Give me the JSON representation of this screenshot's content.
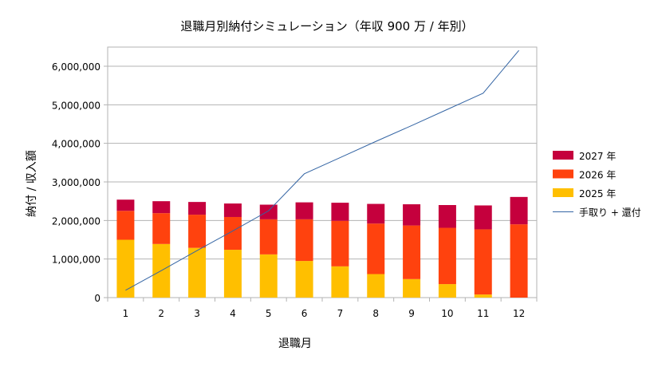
{
  "chart_data": {
    "type": "bar",
    "stacked": true,
    "title": "退職月別納付シミュレーション（年収 900 万 / 年別）",
    "xlabel": "退職月",
    "ylabel": "納付 / 収入額",
    "categories": [
      "1",
      "2",
      "3",
      "4",
      "5",
      "6",
      "7",
      "8",
      "9",
      "10",
      "11",
      "12"
    ],
    "ylim": [
      0,
      6500000
    ],
    "yticks": [
      0,
      1000000,
      2000000,
      3000000,
      4000000,
      5000000,
      6000000
    ],
    "ytick_labels": [
      "0",
      "1,000,000",
      "2,000,000",
      "3,000,000",
      "4,000,000",
      "5,000,000",
      "6,000,000"
    ],
    "grid": true,
    "legend_position": "right",
    "series": [
      {
        "name": "2025 年",
        "kind": "bar",
        "color": "#FFBF00",
        "values": [
          1500000,
          1390000,
          1290000,
          1240000,
          1120000,
          950000,
          810000,
          610000,
          480000,
          350000,
          80000,
          0
        ]
      },
      {
        "name": "2026 年",
        "kind": "bar",
        "color": "#FF420E",
        "values": [
          750000,
          800000,
          860000,
          850000,
          910000,
          1080000,
          1180000,
          1310000,
          1390000,
          1460000,
          1690000,
          1900000
        ]
      },
      {
        "name": "2027 年",
        "kind": "bar",
        "color": "#C5003D",
        "values": [
          290000,
          310000,
          330000,
          350000,
          380000,
          440000,
          470000,
          510000,
          550000,
          590000,
          620000,
          710000
        ]
      },
      {
        "name": "手取り + 還付",
        "kind": "line",
        "color": "#3465A4",
        "values": [
          190000,
          700000,
          1220000,
          1730000,
          2250000,
          3210000,
          3630000,
          4050000,
          4460000,
          4880000,
          5300000,
          6410000
        ]
      }
    ],
    "legend_order": [
      "2027 年",
      "2026 年",
      "2025 年",
      "手取り + 還付"
    ]
  }
}
